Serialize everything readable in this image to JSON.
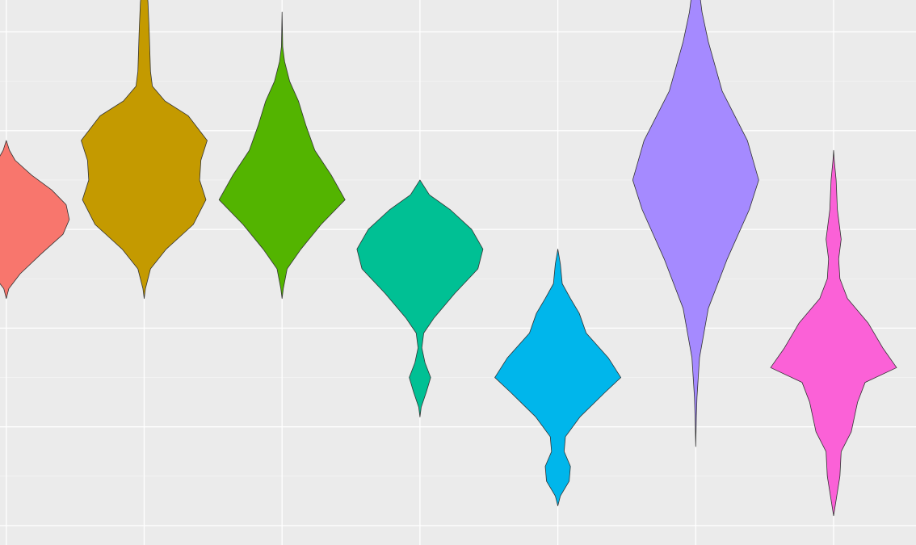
{
  "chart_data": {
    "type": "violin",
    "title": "",
    "xlabel": "",
    "ylabel": "",
    "ylim": [
      0,
      6
    ],
    "grid": true,
    "legend": "none",
    "panel_background": "#ebebeb",
    "grid_color": "#ffffff",
    "outline_color": "#333333",
    "x": [
      0,
      1,
      2,
      3,
      4,
      5,
      6
    ],
    "series": [
      {
        "x": 0,
        "color": "#F8766D",
        "ymin": 2.3,
        "ymax": 3.9,
        "profile": [
          [
            2.3,
            0
          ],
          [
            2.4,
            0.04
          ],
          [
            2.55,
            0.22
          ],
          [
            2.75,
            0.55
          ],
          [
            2.95,
            0.9
          ],
          [
            3.1,
            1
          ],
          [
            3.25,
            0.95
          ],
          [
            3.4,
            0.72
          ],
          [
            3.55,
            0.4
          ],
          [
            3.7,
            0.14
          ],
          [
            3.8,
            0.05
          ],
          [
            3.9,
            0
          ]
        ]
      },
      {
        "x": 1,
        "color": "#C49A00",
        "ymin": 2.3,
        "ymax": 5.5,
        "profile": [
          [
            2.3,
            0
          ],
          [
            2.4,
            0.02
          ],
          [
            2.6,
            0.1
          ],
          [
            2.8,
            0.35
          ],
          [
            3.05,
            0.78
          ],
          [
            3.3,
            0.98
          ],
          [
            3.5,
            0.88
          ],
          [
            3.7,
            0.9
          ],
          [
            3.9,
            1
          ],
          [
            4.15,
            0.7
          ],
          [
            4.3,
            0.33
          ],
          [
            4.45,
            0.13
          ],
          [
            4.6,
            0.1
          ],
          [
            5,
            0.08
          ],
          [
            5.3,
            0.06
          ],
          [
            5.5,
            0.03
          ]
        ]
      },
      {
        "x": 2,
        "color": "#53B400",
        "ymin": 2.3,
        "ymax": 5.2,
        "profile": [
          [
            2.3,
            0
          ],
          [
            2.4,
            0.02
          ],
          [
            2.6,
            0.08
          ],
          [
            2.8,
            0.3
          ],
          [
            3.05,
            0.62
          ],
          [
            3.3,
            1
          ],
          [
            3.55,
            0.78
          ],
          [
            3.8,
            0.52
          ],
          [
            4.05,
            0.38
          ],
          [
            4.3,
            0.26
          ],
          [
            4.5,
            0.12
          ],
          [
            4.7,
            0.04
          ],
          [
            4.85,
            0.01
          ],
          [
            5.2,
            0
          ]
        ]
      },
      {
        "x": 3,
        "color": "#00C094",
        "ymin": 1.1,
        "ymax": 3.5,
        "profile": [
          [
            1.1,
            0
          ],
          [
            1.2,
            0.02
          ],
          [
            1.35,
            0.1
          ],
          [
            1.5,
            0.17
          ],
          [
            1.65,
            0.08
          ],
          [
            1.8,
            0.03
          ],
          [
            1.95,
            0.06
          ],
          [
            2.1,
            0.22
          ],
          [
            2.35,
            0.55
          ],
          [
            2.6,
            0.92
          ],
          [
            2.8,
            1
          ],
          [
            3,
            0.82
          ],
          [
            3.2,
            0.48
          ],
          [
            3.35,
            0.15
          ],
          [
            3.5,
            0
          ]
        ]
      },
      {
        "x": 4,
        "color": "#00B6EB",
        "ymin": 0.2,
        "ymax": 2.8,
        "profile": [
          [
            0.2,
            0
          ],
          [
            0.3,
            0.04
          ],
          [
            0.45,
            0.18
          ],
          [
            0.6,
            0.2
          ],
          [
            0.75,
            0.1
          ],
          [
            0.9,
            0.12
          ],
          [
            1.1,
            0.35
          ],
          [
            1.35,
            0.75
          ],
          [
            1.5,
            1
          ],
          [
            1.7,
            0.8
          ],
          [
            1.95,
            0.45
          ],
          [
            2.15,
            0.34
          ],
          [
            2.3,
            0.2
          ],
          [
            2.45,
            0.07
          ],
          [
            2.65,
            0.04
          ],
          [
            2.8,
            0
          ]
        ]
      },
      {
        "x": 5,
        "color": "#A58AFF",
        "ymin": 0.8,
        "ymax": 5.4,
        "profile": [
          [
            0.8,
            0
          ],
          [
            1.1,
            0.01
          ],
          [
            1.3,
            0.02
          ],
          [
            1.7,
            0.06
          ],
          [
            2.2,
            0.2
          ],
          [
            2.7,
            0.5
          ],
          [
            3.2,
            0.85
          ],
          [
            3.5,
            1
          ],
          [
            3.9,
            0.82
          ],
          [
            4.4,
            0.42
          ],
          [
            4.9,
            0.2
          ],
          [
            5.2,
            0.1
          ],
          [
            5.4,
            0.06
          ]
        ]
      },
      {
        "x": 6,
        "color": "#FB61D7",
        "ymin": 0.1,
        "ymax": 3.8,
        "profile": [
          [
            0.1,
            0
          ],
          [
            0.3,
            0.05
          ],
          [
            0.5,
            0.1
          ],
          [
            0.75,
            0.12
          ],
          [
            0.95,
            0.28
          ],
          [
            1.25,
            0.38
          ],
          [
            1.45,
            0.5
          ],
          [
            1.6,
            1
          ],
          [
            1.8,
            0.78
          ],
          [
            2.05,
            0.55
          ],
          [
            2.3,
            0.22
          ],
          [
            2.5,
            0.1
          ],
          [
            2.7,
            0.08
          ],
          [
            2.9,
            0.12
          ],
          [
            3.2,
            0.06
          ],
          [
            3.5,
            0.04
          ],
          [
            3.7,
            0.01
          ],
          [
            3.8,
            0
          ]
        ]
      }
    ]
  }
}
